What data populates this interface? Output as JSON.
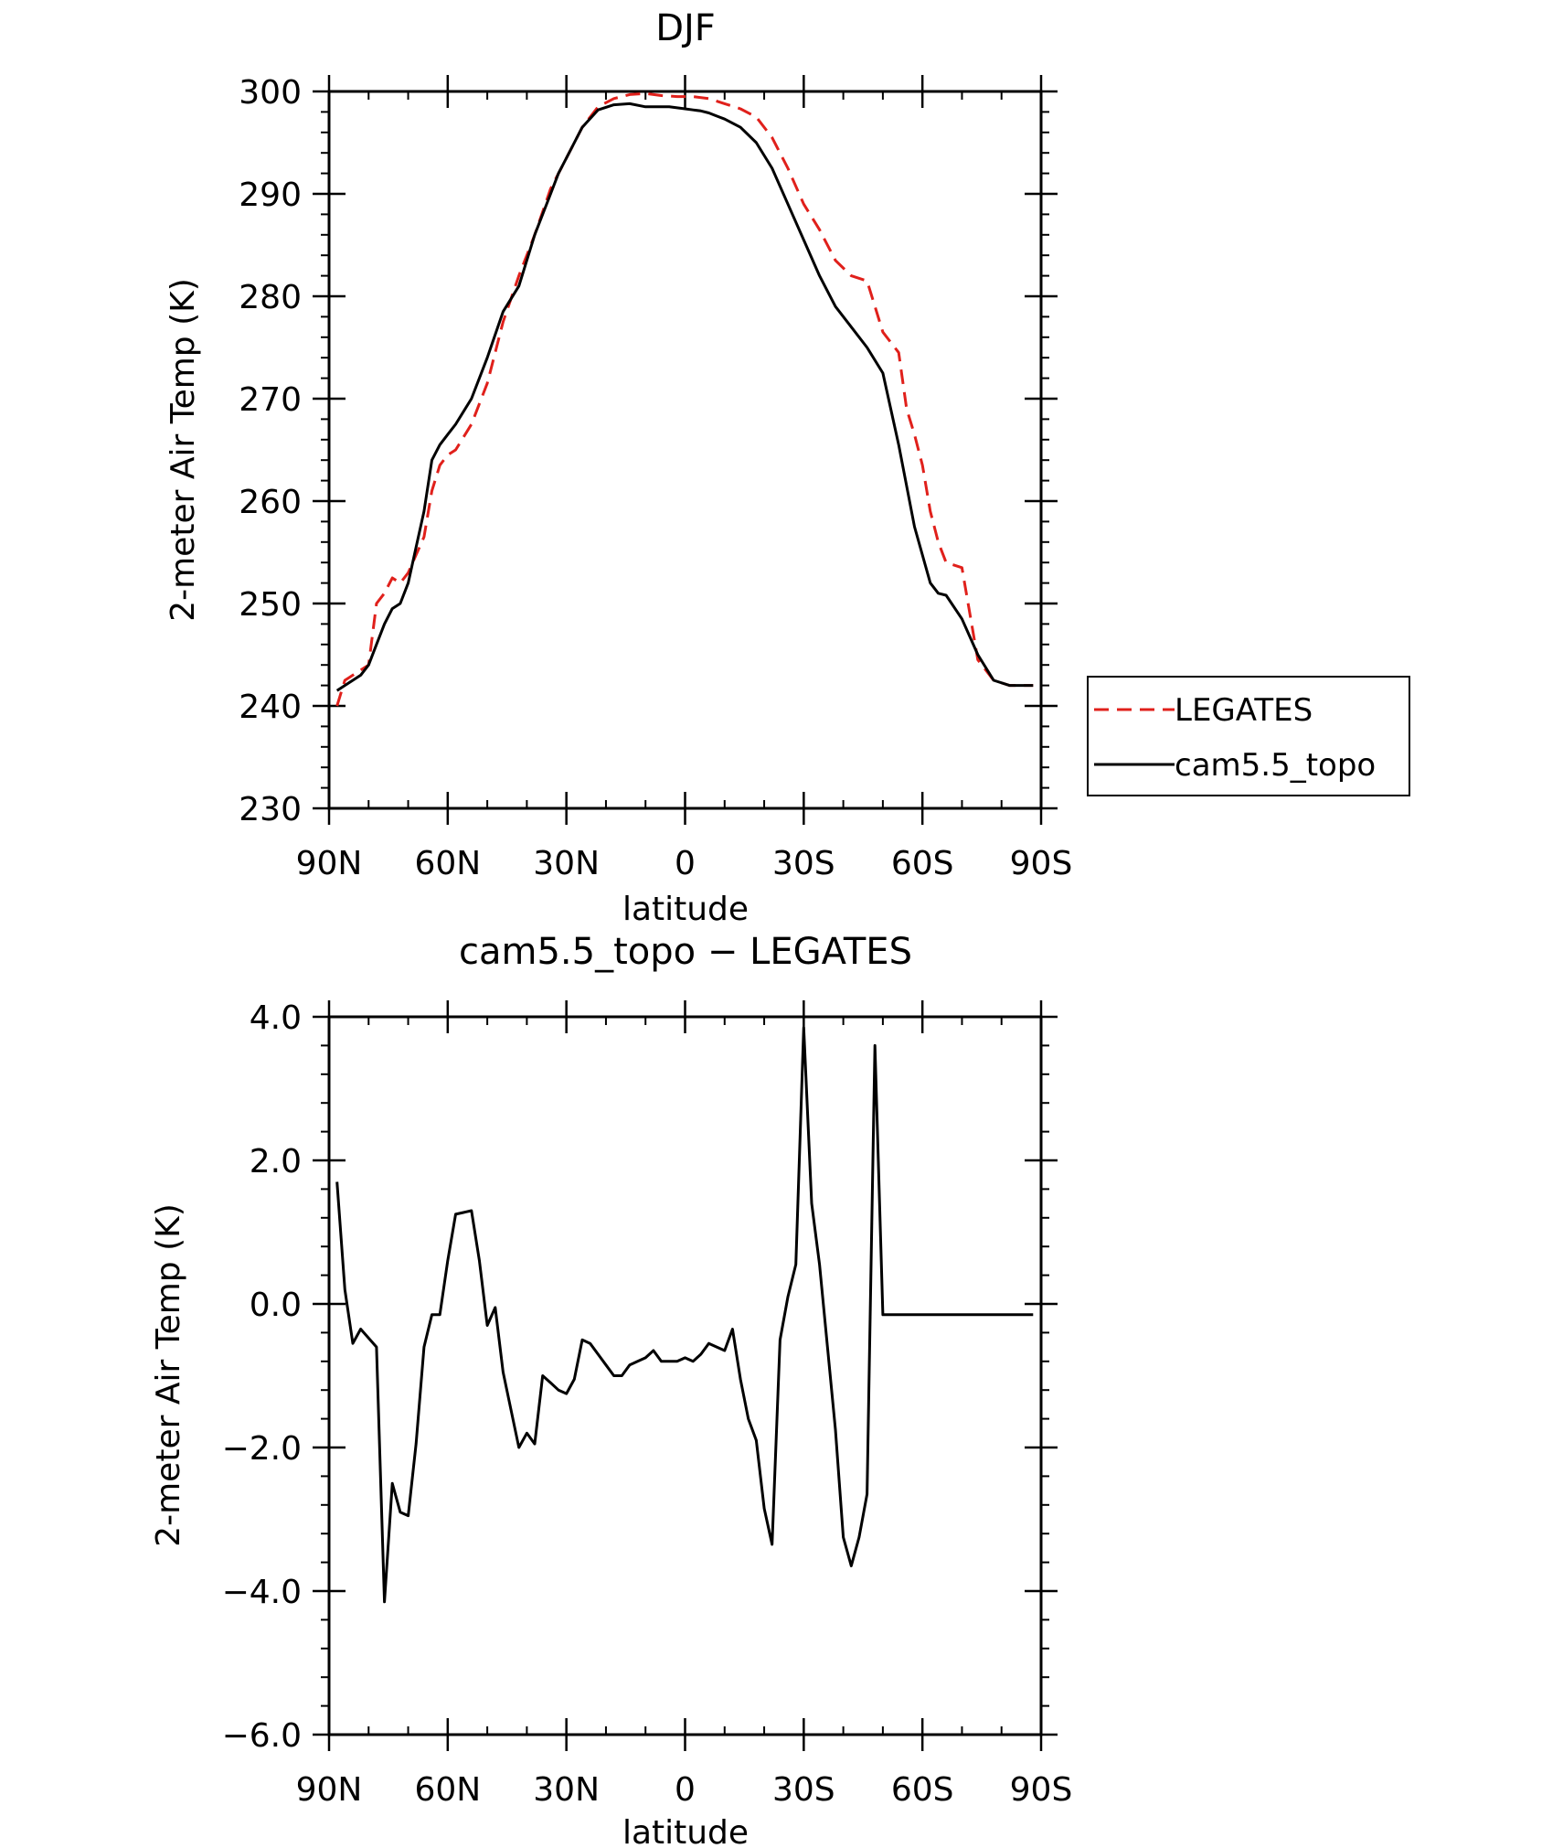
{
  "colors": {
    "obs": "#e0201b",
    "model": "#000000"
  },
  "chart_data": [
    {
      "type": "line",
      "title": "DJF",
      "xlabel": "latitude",
      "ylabel": "2-meter Air Temp (K)",
      "ylim": [
        230,
        300
      ],
      "yticks": [
        230,
        240,
        250,
        260,
        270,
        280,
        290,
        300
      ],
      "ytick_labels": [
        "230",
        "240",
        "250",
        "260",
        "270",
        "280",
        "290",
        "300"
      ],
      "xlim": [
        90,
        -90
      ],
      "xticks": [
        90,
        60,
        30,
        0,
        -30,
        -60,
        -90
      ],
      "xtick_labels": [
        "90N",
        "60N",
        "30N",
        "0",
        "30S",
        "60S",
        "90S"
      ],
      "grid": false,
      "legend": "right-outside",
      "series": [
        {
          "name": "LEGATES",
          "style": "dashed",
          "color": "#e0201b",
          "x": [
            88,
            86,
            84,
            80,
            78,
            76,
            74,
            72,
            70,
            66,
            64,
            62,
            60,
            58,
            54,
            50,
            46,
            42,
            38,
            34,
            30,
            26,
            22,
            18,
            14,
            10,
            6,
            2,
            0,
            -2,
            -6,
            -10,
            -14,
            -18,
            -22,
            -26,
            -30,
            -34,
            -38,
            -42,
            -46,
            -50,
            -54,
            -56,
            -58,
            -60,
            -62,
            -64,
            -66,
            -70,
            -74,
            -78,
            -82,
            -84,
            -86,
            -88
          ],
          "y": [
            240.0,
            242.5,
            243.0,
            244.0,
            250.0,
            251.0,
            252.5,
            252.0,
            253.0,
            256.5,
            261.0,
            263.5,
            264.5,
            265.0,
            267.5,
            271.5,
            277.5,
            282.0,
            286.0,
            290.5,
            293.5,
            296.5,
            298.5,
            299.3,
            299.7,
            299.8,
            299.6,
            299.5,
            299.5,
            299.5,
            299.3,
            298.8,
            298.3,
            297.5,
            295.5,
            292.5,
            289.0,
            286.5,
            283.5,
            282.0,
            281.5,
            276.5,
            274.5,
            269.0,
            266.5,
            263.5,
            259.0,
            256.0,
            254.0,
            253.5,
            244.5,
            242.5,
            242.0,
            242.0,
            242.0,
            242.0
          ]
        },
        {
          "name": "cam5.5_topo",
          "style": "solid",
          "color": "#000000",
          "x": [
            88,
            86,
            84,
            82,
            80,
            78,
            76,
            74,
            72,
            70,
            68,
            66,
            64,
            62,
            60,
            58,
            54,
            50,
            46,
            42,
            38,
            34,
            32,
            30,
            26,
            22,
            18,
            14,
            10,
            6,
            4,
            2,
            0,
            -2,
            -4,
            -6,
            -8,
            -10,
            -14,
            -18,
            -22,
            -26,
            -30,
            -34,
            -38,
            -42,
            -46,
            -50,
            -54,
            -58,
            -62,
            -64,
            -66,
            -70,
            -74,
            -78,
            -82,
            -84,
            -86,
            -88
          ],
          "y": [
            241.5,
            242.0,
            242.5,
            243.0,
            244.0,
            246.0,
            248.0,
            249.5,
            250.0,
            252.0,
            255.5,
            259.0,
            264.0,
            265.5,
            266.5,
            267.5,
            270.0,
            274.0,
            278.5,
            281.0,
            286.0,
            290.0,
            292.0,
            293.5,
            296.5,
            298.2,
            298.7,
            298.8,
            298.5,
            298.5,
            298.5,
            298.4,
            298.3,
            298.2,
            298.1,
            297.9,
            297.6,
            297.3,
            296.5,
            295.0,
            292.5,
            289.0,
            285.5,
            282.0,
            279.0,
            277.0,
            275.0,
            272.5,
            265.5,
            257.5,
            252.0,
            251.0,
            250.8,
            248.5,
            245.0,
            242.5,
            242.0,
            242.0,
            242.0,
            242.0
          ]
        }
      ]
    },
    {
      "type": "line",
      "title": "cam5.5_topo − LEGATES",
      "xlabel": "latitude",
      "ylabel": "2-meter Air Temp (K)",
      "ylim": [
        -6.0,
        4.0
      ],
      "yticks": [
        -6.0,
        -4.0,
        -2.0,
        0.0,
        2.0,
        4.0
      ],
      "ytick_labels": [
        "−6.0",
        "−4.0",
        "−2.0",
        "0.0",
        "2.0",
        "4.0"
      ],
      "xlim": [
        90,
        -90
      ],
      "xticks": [
        90,
        60,
        30,
        0,
        -30,
        -60,
        -90
      ],
      "xtick_labels": [
        "90N",
        "60N",
        "30N",
        "0",
        "30S",
        "60S",
        "90S"
      ],
      "grid": false,
      "series": [
        {
          "style": "solid",
          "color": "#000000",
          "x": [
            88,
            86,
            84,
            82,
            78,
            76,
            74,
            72,
            70,
            68,
            66,
            64,
            62,
            60,
            58,
            54,
            52,
            50,
            48,
            46,
            42,
            40,
            38,
            36,
            34,
            32,
            30,
            28,
            26,
            24,
            22,
            20,
            18,
            16,
            14,
            12,
            10,
            8,
            6,
            4,
            2,
            0,
            -2,
            -4,
            -6,
            -8,
            -10,
            -12,
            -14,
            -16,
            -18,
            -20,
            -22,
            -24,
            -26,
            -28,
            -30,
            -32,
            -34,
            -36,
            -38,
            -40,
            -42,
            -44,
            -46,
            -48,
            -50,
            -52,
            -54,
            -56,
            -58,
            -60,
            -62,
            -64,
            -66,
            -68,
            -70,
            -72,
            -74,
            -76,
            -78,
            -80,
            -82,
            -84,
            -86,
            -88
          ],
          "y": [
            1.7,
            0.2,
            -0.55,
            -0.35,
            -0.6,
            -4.15,
            -2.5,
            -2.9,
            -2.95,
            -1.95,
            -0.6,
            -0.15,
            -0.15,
            0.6,
            1.25,
            1.3,
            0.6,
            -0.3,
            -0.05,
            -0.95,
            -2.0,
            -1.8,
            -1.95,
            -1.0,
            -1.1,
            -1.2,
            -1.25,
            -1.05,
            -0.5,
            -0.55,
            -0.7,
            -0.85,
            -1.0,
            -1.0,
            -0.85,
            -0.8,
            -0.75,
            -0.65,
            -0.8,
            -0.8,
            -0.8,
            -0.75,
            -0.8,
            -0.7,
            -0.55,
            -0.6,
            -0.65,
            -0.35,
            -1.05,
            -1.6,
            -1.9,
            -2.85,
            -3.35,
            -0.5,
            0.1,
            0.55,
            3.85,
            1.4,
            0.55,
            -0.6,
            -1.75,
            -3.25,
            -3.65,
            -3.25,
            -2.65,
            3.6,
            -0.15,
            -0.15,
            -0.15,
            -0.15,
            -0.15,
            -0.15,
            -0.15,
            -0.15,
            -0.15,
            -0.15,
            -0.15,
            -0.15,
            -0.15,
            -0.15,
            -0.15,
            -0.15,
            -0.15,
            -0.15,
            -0.15,
            -0.15
          ]
        }
      ]
    }
  ]
}
